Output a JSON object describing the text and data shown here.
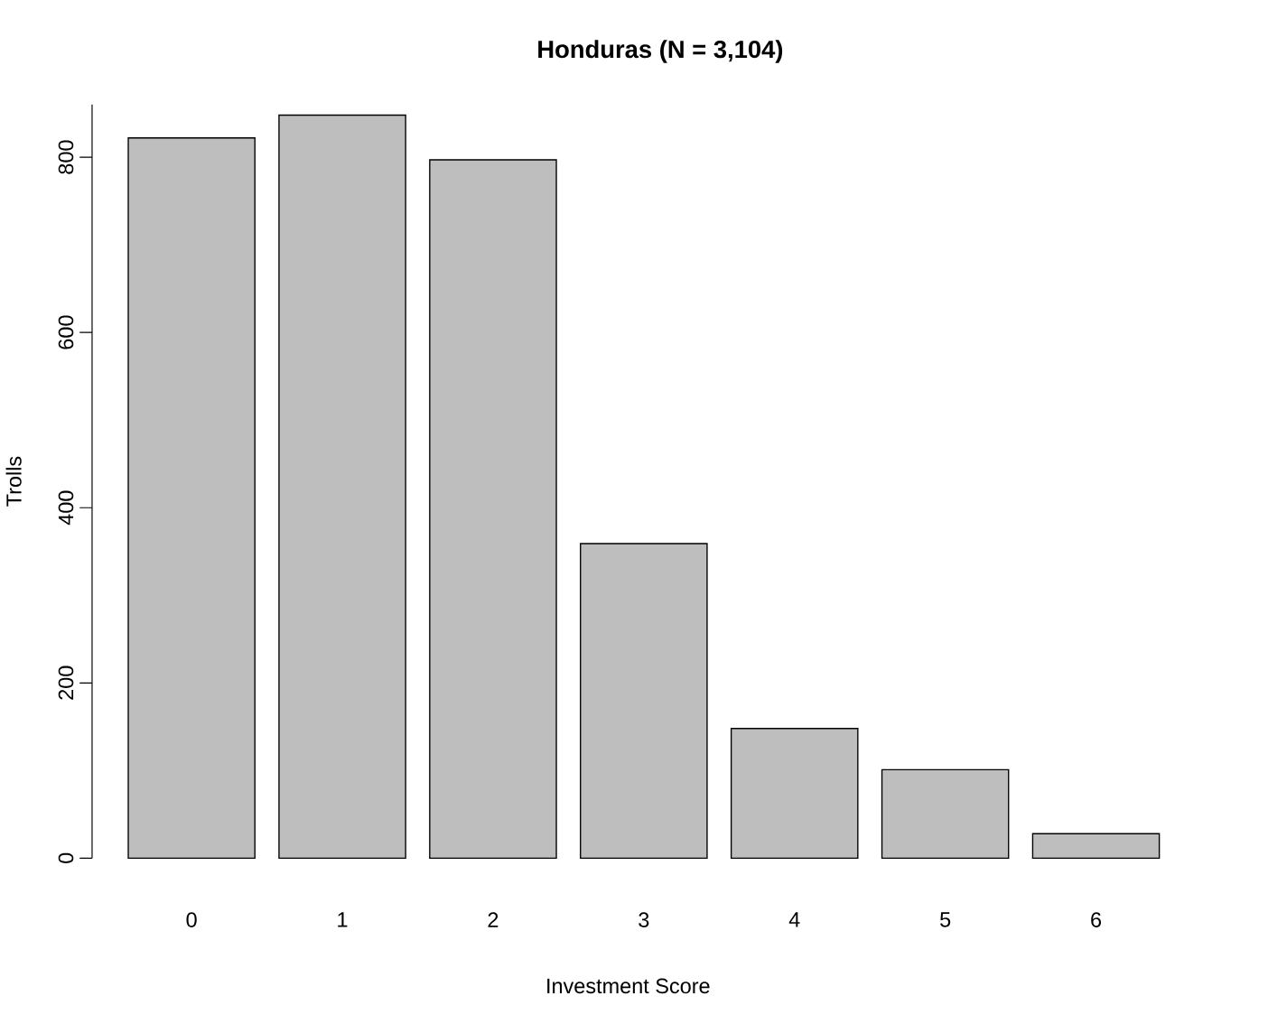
{
  "chart_data": {
    "type": "bar",
    "title": "Honduras (N = 3,104)",
    "xlabel": "Investment Score",
    "ylabel": "Trolls",
    "categories": [
      "0",
      "1",
      "2",
      "3",
      "4",
      "5",
      "6"
    ],
    "values": [
      822,
      848,
      797,
      359,
      148,
      101,
      28
    ],
    "color": "#bebebe",
    "ylim": [
      0,
      860
    ],
    "yticks": [
      0,
      200,
      400,
      600,
      800
    ],
    "grid": false
  }
}
